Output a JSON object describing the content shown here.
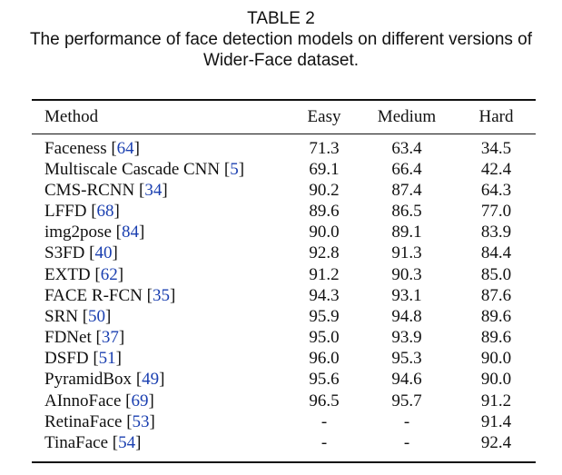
{
  "caption": {
    "label": "TABLE 2",
    "line1": "The performance of face detection models on different versions of",
    "line2": "Wider-Face dataset."
  },
  "table": {
    "headers": [
      "Method",
      "Easy",
      "Medium",
      "Hard"
    ],
    "rows": [
      {
        "method": "Faceness",
        "ref": "64",
        "easy": "71.3",
        "medium": "63.4",
        "hard": "34.5"
      },
      {
        "method": "Multiscale Cascade CNN",
        "ref": "5",
        "easy": "69.1",
        "medium": "66.4",
        "hard": "42.4"
      },
      {
        "method": "CMS-RCNN",
        "ref": "34",
        "easy": "90.2",
        "medium": "87.4",
        "hard": "64.3"
      },
      {
        "method": "LFFD",
        "ref": "68",
        "easy": "89.6",
        "medium": "86.5",
        "hard": "77.0"
      },
      {
        "method": "img2pose",
        "ref": "84",
        "easy": "90.0",
        "medium": "89.1",
        "hard": "83.9"
      },
      {
        "method": "S3FD",
        "ref": "40",
        "easy": "92.8",
        "medium": "91.3",
        "hard": "84.4"
      },
      {
        "method": "EXTD",
        "ref": "62",
        "easy": "91.2",
        "medium": "90.3",
        "hard": "85.0"
      },
      {
        "method": "FACE R-FCN",
        "ref": "35",
        "easy": "94.3",
        "medium": "93.1",
        "hard": "87.6"
      },
      {
        "method": "SRN",
        "ref": "50",
        "easy": "95.9",
        "medium": "94.8",
        "hard": "89.6"
      },
      {
        "method": "FDNet",
        "ref": "37",
        "easy": "95.0",
        "medium": "93.9",
        "hard": "89.6"
      },
      {
        "method": "DSFD",
        "ref": "51",
        "easy": "96.0",
        "medium": "95.3",
        "hard": "90.0"
      },
      {
        "method": "PyramidBox",
        "ref": "49",
        "easy": "95.6",
        "medium": "94.6",
        "hard": "90.0"
      },
      {
        "method": "AInnoFace",
        "ref": "69",
        "easy": "96.5",
        "medium": "95.7",
        "hard": "91.2"
      },
      {
        "method": "RetinaFace",
        "ref": "53",
        "easy": "-",
        "medium": "-",
        "hard": "91.4"
      },
      {
        "method": "TinaFace",
        "ref": "54",
        "easy": "-",
        "medium": "-",
        "hard": "92.4"
      }
    ]
  },
  "colors": {
    "citation": "#1a3fb0",
    "text": "#111111"
  }
}
